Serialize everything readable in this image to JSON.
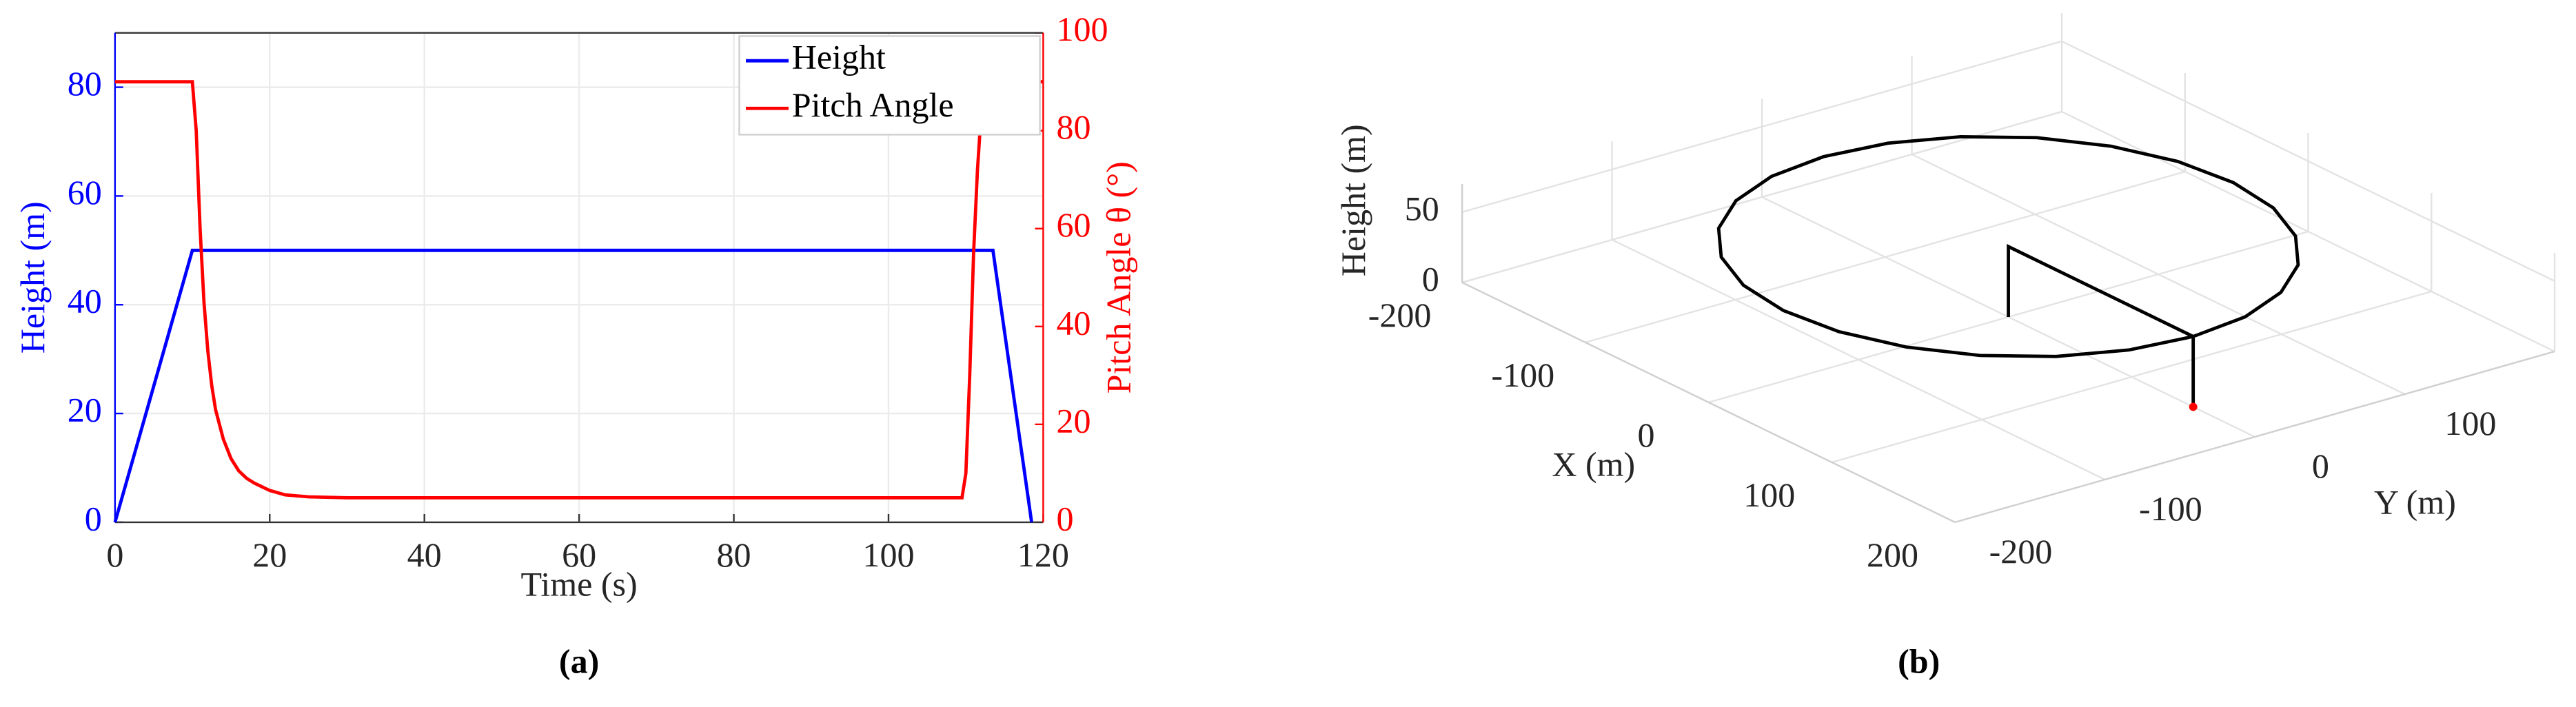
{
  "chart_data": [
    {
      "type": "line",
      "xlabel": "Time (s)",
      "ylabel": "Height (m)",
      "y2label": "Pitch Angle θ (°)",
      "caption": "(a)",
      "xlim": [
        0,
        120
      ],
      "xticks": [
        0,
        20,
        40,
        60,
        80,
        100,
        120
      ],
      "ylim": [
        0,
        90
      ],
      "yticks": [
        0,
        20,
        40,
        60,
        80
      ],
      "y2lim": [
        0,
        100
      ],
      "y2ticks": [
        0,
        20,
        40,
        60,
        80,
        100
      ],
      "grid": true,
      "legend": "upper right",
      "series": [
        {
          "name": "Height",
          "color": "#0000ff",
          "x": [
            0,
            10,
            113.5,
            118.5
          ],
          "values": [
            0,
            50,
            50,
            0
          ]
        },
        {
          "name": "Pitch Angle",
          "color": "#ff0000",
          "axis": "y2",
          "x": [
            0,
            10,
            10.5,
            11,
            11.5,
            12,
            12.5,
            13,
            14,
            15,
            16,
            17,
            18,
            20,
            22,
            25,
            30,
            109.5,
            110,
            110.5,
            111,
            111.5,
            112,
            112.5,
            120
          ],
          "values": [
            90,
            90,
            80,
            60,
            45,
            35,
            28,
            23,
            17,
            13,
            10.5,
            9,
            8,
            6.5,
            5.6,
            5.2,
            5,
            5,
            10,
            30,
            55,
            72,
            84,
            90,
            90
          ]
        }
      ]
    },
    {
      "type": "line3d",
      "xlabel": "X (m)",
      "ylabel": "Y (m)",
      "zlabel": "Height (m)",
      "caption": "(b)",
      "xlim": [
        -200,
        200
      ],
      "xticks": [
        -200,
        -100,
        0,
        100,
        200
      ],
      "ylim": [
        -200,
        200
      ],
      "yticks": [
        -200,
        -100,
        0,
        100
      ],
      "zlim": [
        0,
        70
      ],
      "zticks": [
        0,
        50
      ],
      "grid": true,
      "series": [
        {
          "color": "#000000",
          "x": [
            150,
            144.9,
            129.9,
            106.1,
            75,
            38.8,
            0,
            -38.8,
            -75,
            -106.1,
            -129.9,
            -144.9,
            -150,
            -144.9,
            -129.9,
            -106.1,
            -75,
            -38.8,
            0,
            38.8,
            75,
            106.1,
            129.9,
            144.9,
            150
          ],
          "y": [
            0,
            38.8,
            75,
            106.1,
            129.9,
            144.9,
            150,
            144.9,
            129.9,
            106.1,
            75,
            38.8,
            0,
            -38.8,
            -75,
            -106.1,
            -129.9,
            -144.9,
            -150,
            -144.9,
            -129.9,
            -106.1,
            -75,
            -38.8,
            0
          ],
          "z": [
            50,
            50,
            50,
            50,
            50,
            50,
            50,
            50,
            50,
            50,
            50,
            50,
            50,
            50,
            50,
            50,
            50,
            50,
            50,
            50,
            50,
            50,
            50,
            50,
            50
          ]
        },
        {
          "color": "#000000",
          "x": [
            150,
            150,
            0,
            0
          ],
          "y": [
            0,
            0,
            0,
            0
          ],
          "z": [
            0,
            50,
            50,
            0
          ]
        },
        {
          "color": "#ff0000",
          "marker": "o",
          "x": [
            150
          ],
          "y": [
            0
          ],
          "z": [
            0
          ]
        }
      ]
    }
  ]
}
